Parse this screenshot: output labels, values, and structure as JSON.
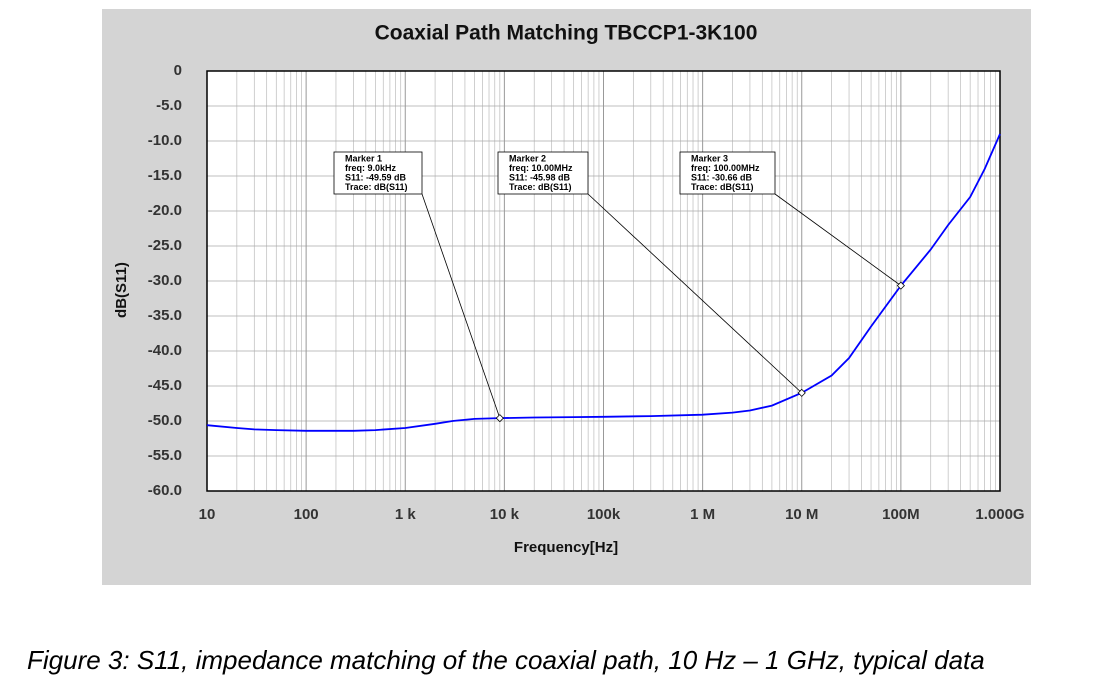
{
  "chart_data": {
    "type": "line",
    "title": "Coaxial Path Matching TBCCP1-3K100",
    "x_label": "Frequency[Hz]",
    "y_label": "dB(S11)",
    "x": [
      10,
      20,
      30,
      50,
      100,
      200,
      300,
      500,
      1000,
      2000,
      3000,
      5000,
      9000,
      20000,
      50000,
      100000,
      300000,
      1000000,
      2000000,
      3000000,
      5000000,
      10000000,
      20000000,
      30000000,
      50000000,
      100000000,
      200000000,
      300000000,
      500000000,
      700000000,
      1000000000
    ],
    "values": [
      -50.6,
      -51.0,
      -51.2,
      -51.3,
      -51.4,
      -51.4,
      -51.4,
      -51.3,
      -51.0,
      -50.4,
      -50.0,
      -49.7,
      -49.59,
      -49.5,
      -49.45,
      -49.4,
      -49.3,
      -49.1,
      -48.8,
      -48.5,
      -47.8,
      -45.98,
      -43.5,
      -41.0,
      -36.5,
      -30.66,
      -25.5,
      -22.0,
      -18.0,
      -14.0,
      -9.0
    ],
    "color": "#0000ff",
    "log_x": true,
    "xlim": [
      10,
      1000000000
    ],
    "xticks": [
      10,
      100,
      {
        "value": 1000,
        "label": "1 k"
      },
      {
        "value": 10000,
        "label": "10 k"
      },
      {
        "value": 100000,
        "label": "100k"
      },
      {
        "value": 1000000,
        "label": "1 M"
      },
      {
        "value": 10000000,
        "label": "10 M"
      },
      {
        "value": 100000000,
        "label": "100M"
      },
      {
        "value": 1000000000,
        "label": "1.000G"
      }
    ],
    "ylim": [
      -60,
      0
    ],
    "yticks": [
      0,
      {
        "value": -5,
        "label": "-5.0"
      },
      {
        "value": -10,
        "label": "-10.0"
      },
      {
        "value": -15,
        "label": "-15.0"
      },
      {
        "value": -20,
        "label": "-20.0"
      },
      {
        "value": -25,
        "label": "-25.0"
      },
      {
        "value": -30,
        "label": "-30.0"
      },
      {
        "value": -35,
        "label": "-35.0"
      },
      {
        "value": -40,
        "label": "-40.0"
      },
      {
        "value": -45,
        "label": "-45.0"
      },
      {
        "value": -50,
        "label": "-50.0"
      },
      {
        "value": -55,
        "label": "-55.0"
      },
      {
        "value": -60,
        "label": "-60.0"
      }
    ],
    "grid": true,
    "markers": [
      {
        "x": 9000,
        "y": -49.59,
        "lines": [
          "Marker 1",
          "freq: 9.0kHz",
          "S11: -49.59 dB",
          "Trace: dB(S11)"
        ]
      },
      {
        "x": 10000000,
        "y": -45.98,
        "lines": [
          "Marker 2",
          "freq: 10.00MHz",
          "S11: -45.98 dB",
          "Trace: dB(S11)"
        ]
      },
      {
        "x": 100000000,
        "y": -30.66,
        "lines": [
          "Marker 3",
          "freq: 100.00MHz",
          "S11: -30.66 dB",
          "Trace: dB(S11)"
        ]
      }
    ]
  },
  "caption": "Figure 3: S11, impedance matching of the coaxial path, 10 Hz – 1 GHz, typical data"
}
